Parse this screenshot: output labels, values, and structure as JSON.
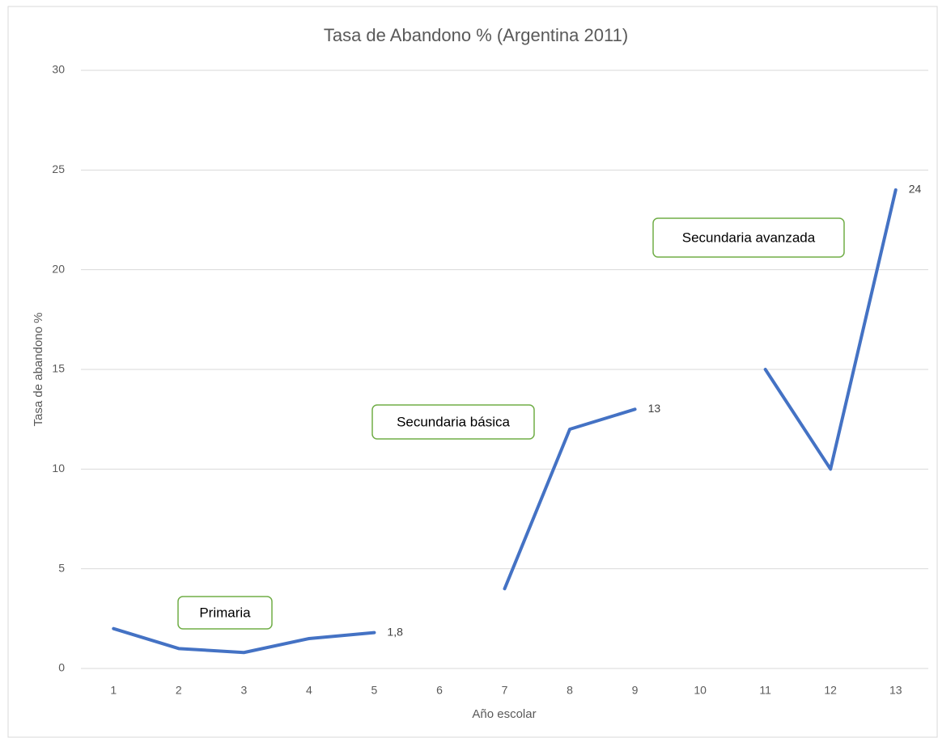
{
  "chart_data": {
    "type": "line",
    "title": "Tasa de Abandono % (Argentina 2011)",
    "xlabel": "Año escolar",
    "ylabel": "Tasa de abandono %",
    "categories": [
      "1",
      "2",
      "3",
      "4",
      "5",
      "6",
      "7",
      "8",
      "9",
      "10",
      "11",
      "12",
      "13"
    ],
    "values": [
      2,
      1,
      0.8,
      1.5,
      1.8,
      null,
      4,
      12,
      13,
      null,
      15,
      10,
      24
    ],
    "value_labels": [
      null,
      null,
      null,
      null,
      "1,8",
      null,
      null,
      null,
      "13",
      null,
      null,
      null,
      "24"
    ],
    "color": "#4472c4",
    "ylim": [
      0,
      30
    ],
    "yticks": [
      0,
      5,
      10,
      15,
      20,
      25,
      30
    ],
    "grid": true,
    "annotations": [
      "Primaria",
      "Secundaria básica",
      "Secundaria avanzada"
    ]
  }
}
